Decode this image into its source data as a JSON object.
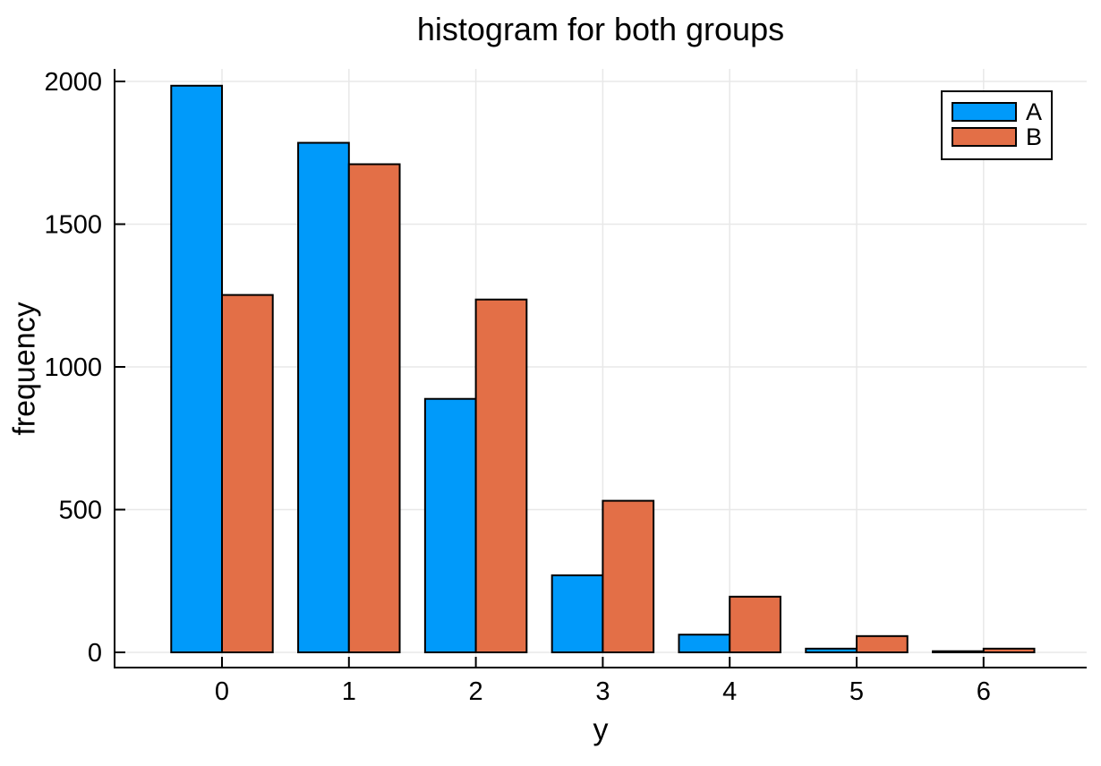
{
  "chart_data": {
    "type": "bar",
    "title": "histogram for both groups",
    "xlabel": "y",
    "ylabel": "frequency",
    "categories": [
      0,
      1,
      2,
      3,
      4,
      5,
      6
    ],
    "series": [
      {
        "name": "A",
        "color": "#009AFA",
        "values": [
          1985,
          1785,
          888,
          270,
          62,
          13,
          4
        ]
      },
      {
        "name": "B",
        "color": "#E36F47",
        "values": [
          1252,
          1710,
          1236,
          531,
          195,
          57,
          13
        ]
      }
    ],
    "xticks": [
      0,
      1,
      2,
      3,
      4,
      5,
      6
    ],
    "yticks": [
      0,
      500,
      1000,
      1500,
      2000
    ],
    "ylim": [
      0,
      2000
    ],
    "grid": true,
    "legend_position": "top-right",
    "bar_outline_color": "#000000",
    "grid_color": "#E8E8E8",
    "axis_color": "#000000",
    "background": "#FFFFFF",
    "bar_group_layout": "side-by-side, bars touch at category center, each bar 0.4 category-widths wide"
  }
}
